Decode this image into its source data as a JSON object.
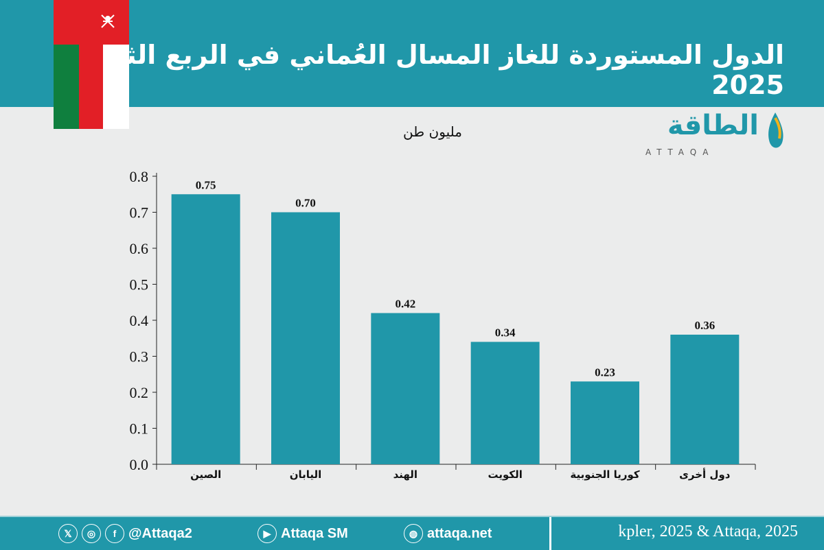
{
  "header": {
    "title": "الدول المستوردة للغاز المسال العُماني في الربع الثالث 2025"
  },
  "logo": {
    "arabic": "الطاقة",
    "latin": "ATTAQA"
  },
  "colors": {
    "teal": "#2097a9",
    "background": "#ebecec",
    "flag_red": "#e21f26",
    "flag_green": "#0f7f3e"
  },
  "chart_data": {
    "type": "bar",
    "title": "الدول المستوردة للغاز المسال العُماني في الربع الثالث 2025",
    "ylabel": "مليون طن",
    "xlabel": "",
    "categories": [
      "الصين",
      "اليابان",
      "الهند",
      "الكويت",
      "كوريا الجنوبية",
      "دول أخرى"
    ],
    "values": [
      0.75,
      0.7,
      0.42,
      0.34,
      0.23,
      0.36
    ],
    "value_labels": [
      "0.75",
      "0.70",
      "0.42",
      "0.34",
      "0.23",
      "0.36"
    ],
    "ylim": [
      0,
      0.8
    ],
    "yticks": [
      "0.0",
      "0.1",
      "0.2",
      "0.3",
      "0.4",
      "0.5",
      "0.6",
      "0.7",
      "0.8"
    ],
    "grid": false
  },
  "footer": {
    "handle": "@Attaqa2",
    "youtube": "Attaqa SM",
    "website": "attaqa.net",
    "source": "kpler, 2025 & Attaqa, 2025",
    "icons": [
      "x-icon",
      "instagram-icon",
      "facebook-icon",
      "youtube-icon",
      "globe-icon"
    ]
  }
}
